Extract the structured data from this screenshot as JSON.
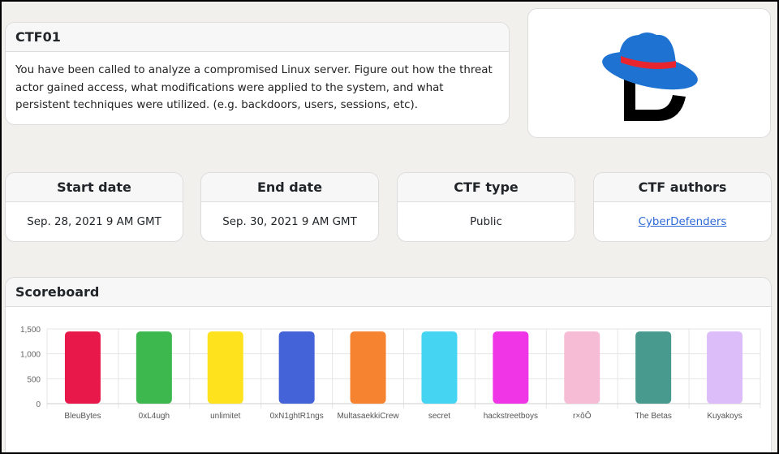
{
  "ctf": {
    "title": "CTF01",
    "description": "You have been called to analyze a compromised Linux server. Figure out how the threat actor gained access, what modifications were applied to the system, and what persistent techniques were utilized. (e.g. backdoors, users, sessions, etc)."
  },
  "logo": {
    "icon": "red-hat-defender-logo",
    "hat_color": "#1e73d2",
    "band_color": "#e8242e"
  },
  "info": {
    "start": {
      "label": "Start date",
      "value": "Sep. 28, 2021 9 AM GMT"
    },
    "end": {
      "label": "End date",
      "value": "Sep. 30, 2021 9 AM GMT"
    },
    "type": {
      "label": "CTF type",
      "value": "Public"
    },
    "authors": {
      "label": "CTF authors",
      "value": "CyberDefenders"
    }
  },
  "scoreboard": {
    "title": "Scoreboard"
  },
  "chart_data": {
    "type": "bar",
    "categories": [
      "BleuBytes",
      "0xL4ugh",
      "unlimitet",
      "0xN1ghtR1ngs",
      "MultasaekkiCrew",
      "secret",
      "hackstreetboys",
      "r×ôÔ",
      "The Betas",
      "Kuyakoys"
    ],
    "values": [
      1450,
      1450,
      1450,
      1450,
      1450,
      1450,
      1450,
      1450,
      1450,
      1450
    ],
    "colors": [
      "#e8194a",
      "#3cb84e",
      "#fde21d",
      "#4563d8",
      "#f5832f",
      "#45d4f2",
      "#ef35e6",
      "#f7bcd5",
      "#489a8f",
      "#dcbdfa"
    ],
    "yticks": [
      "0",
      "500",
      "1,000",
      "1,500"
    ],
    "ylim": [
      0,
      1500
    ],
    "grid": true,
    "legend": "none"
  }
}
